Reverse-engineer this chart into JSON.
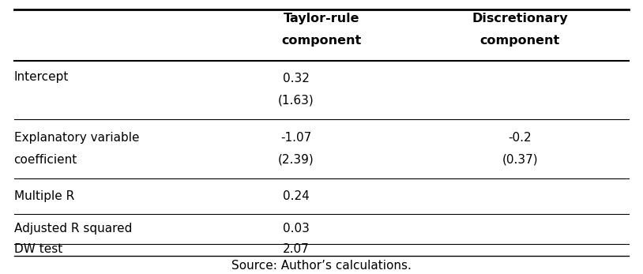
{
  "title": "",
  "source_text": "Source: Author’s calculations.",
  "col_headers": [
    "",
    "Taylor-rule\ncomponent",
    "Discretionary\ncomponent"
  ],
  "rows": [
    {
      "label": "Intercept",
      "label2": "",
      "col1_line1": "0.32",
      "col1_line2": "(1.63)",
      "col2_line1": "",
      "col2_line2": ""
    },
    {
      "label": "Explanatory variable",
      "label2": "coefficient",
      "col1_line1": "-1.07",
      "col1_line2": "(2.39)",
      "col2_line1": "-0.2",
      "col2_line2": "(0.37)"
    },
    {
      "label": "Multiple R",
      "label2": "",
      "col1_line1": "0.24",
      "col1_line2": "",
      "col2_line1": "",
      "col2_line2": ""
    },
    {
      "label": "Adjusted R squared",
      "label2": "",
      "col1_line1": "0.03",
      "col1_line2": "",
      "col2_line1": "",
      "col2_line2": ""
    },
    {
      "label": "DW test",
      "label2": "",
      "col1_line1": "2.07",
      "col1_line2": "",
      "col2_line1": "",
      "col2_line2": ""
    }
  ],
  "bg_color": "#ffffff",
  "text_color": "#000000",
  "line_color": "#000000",
  "font_size": 11,
  "header_font_size": 11.5
}
